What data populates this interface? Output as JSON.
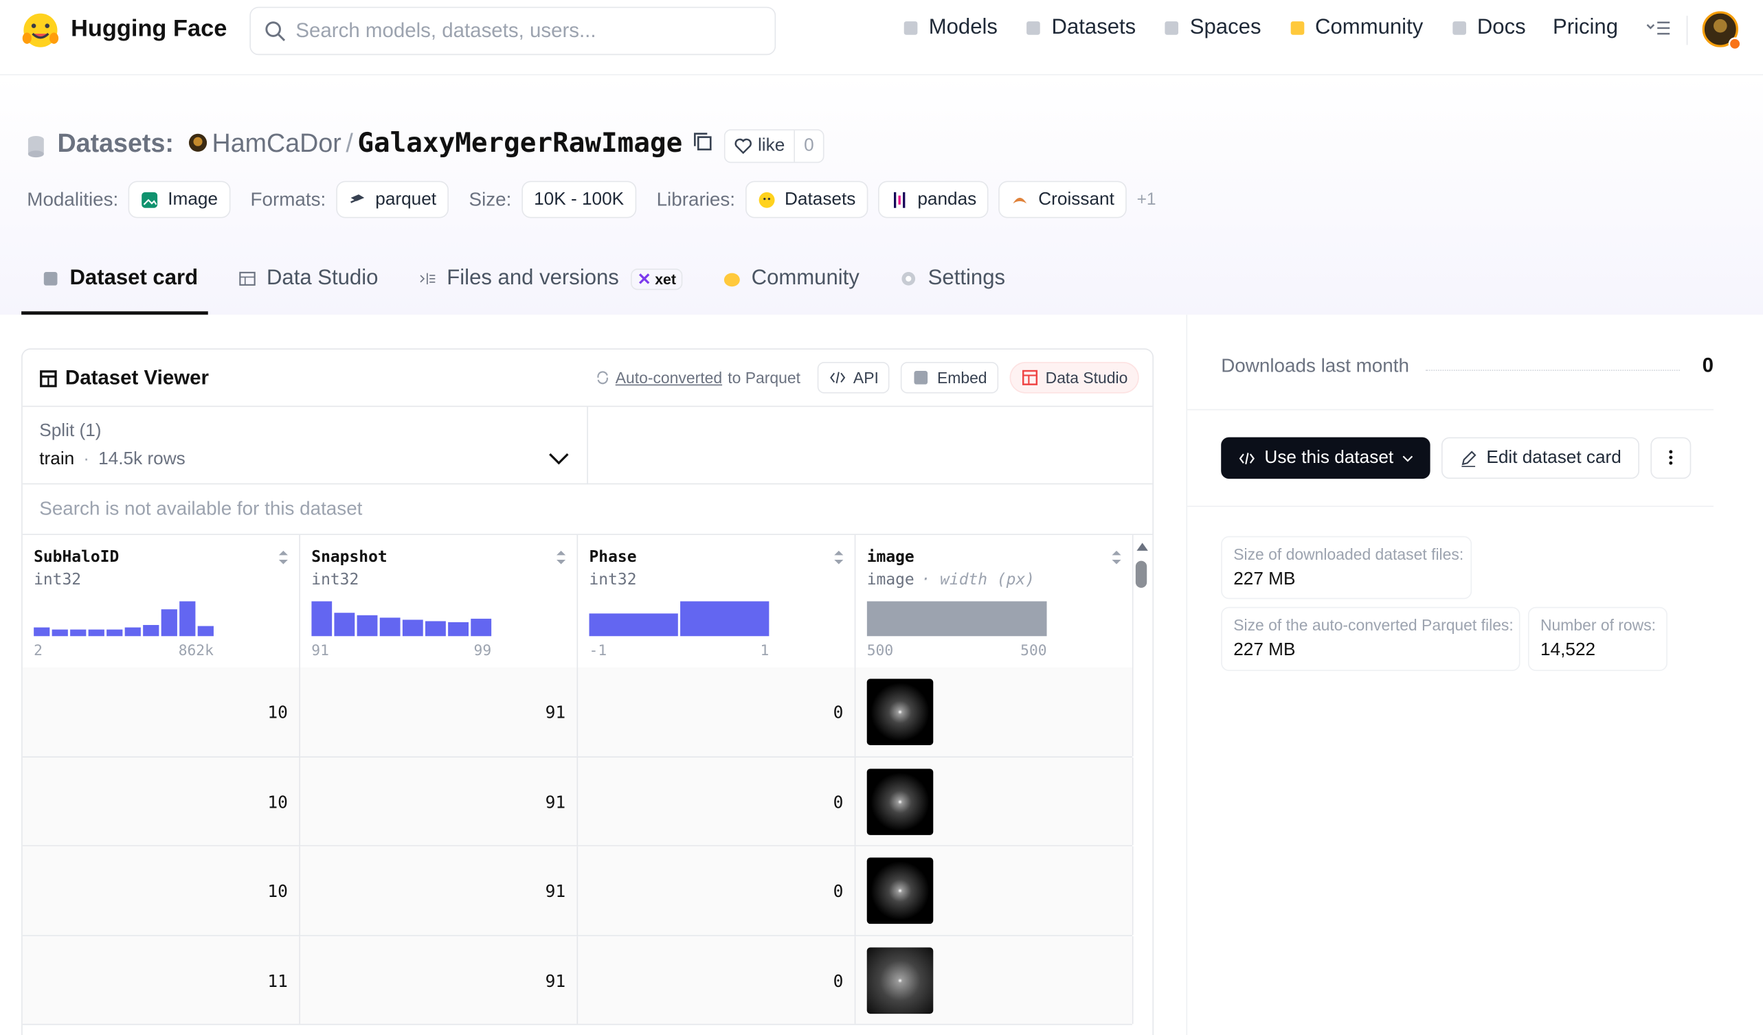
{
  "nav": {
    "brand": "Hugging Face",
    "search_placeholder": "Search models, datasets, users...",
    "links": [
      "Models",
      "Datasets",
      "Spaces",
      "Community",
      "Docs",
      "Pricing"
    ]
  },
  "header": {
    "section": "Datasets:",
    "owner": "HamCaDor",
    "separator": "/",
    "name": "GalaxyMergerRawImage",
    "like": "like",
    "likes": 0
  },
  "tags": [
    {
      "label": "Modalities:",
      "items": [
        "Image"
      ]
    },
    {
      "label": "Formats:",
      "items": [
        "parquet"
      ]
    },
    {
      "label": "Size:",
      "items": [
        "10K - 100K"
      ]
    },
    {
      "label": "Libraries:",
      "items": [
        "Datasets",
        "pandas",
        "Croissant"
      ]
    }
  ],
  "tags_more": "+1",
  "tabs": [
    "Dataset card",
    "Data Studio",
    "Files and versions",
    "Community",
    "Settings"
  ],
  "xet": "xet",
  "viewer": {
    "title": "Dataset Viewer",
    "autoconv": "Auto-converted",
    "autoconv_rest": "to Parquet",
    "buttons": [
      "API",
      "Embed",
      "Data Studio"
    ],
    "split_label": "Split (1)",
    "split": "train",
    "dot": "·",
    "split_rows": "14.5k rows",
    "search_note": "Search is not available for this dataset",
    "columns": [
      {
        "name": "SubHaloID",
        "type": "int32",
        "hist": [
          25,
          19,
          19,
          19,
          19,
          25,
          32,
          77,
          100,
          29
        ],
        "min": 2,
        "max": {
          "value": 862000,
          "label": "862k"
        }
      },
      {
        "name": "Snapshot",
        "type": "int32",
        "hist": [
          100,
          67,
          60,
          53,
          47,
          43,
          40,
          50
        ],
        "min": 91,
        "max": 99
      },
      {
        "name": "Phase",
        "type": "int32",
        "hist": [
          65,
          100
        ],
        "min": -1,
        "max": 1
      },
      {
        "name": "image",
        "type": "image",
        "subtype": "· width (px)",
        "hist": [
          100
        ],
        "min": 500,
        "max": 500
      }
    ],
    "rows": [
      [
        10,
        91,
        0
      ],
      [
        10,
        91,
        0
      ],
      [
        10,
        91,
        0
      ],
      [
        11,
        91,
        0
      ]
    ]
  },
  "sidebar": {
    "downloads_label": "Downloads last month",
    "downloads": 0,
    "use": "Use this dataset",
    "edit": "Edit dataset card",
    "stats": [
      {
        "label": "Size of downloaded dataset files:",
        "value": "227 MB"
      },
      {
        "label": "Size of the auto-converted Parquet files:",
        "value": "227 MB"
      },
      {
        "label": "Number of rows:",
        "value": "14,522"
      }
    ]
  }
}
